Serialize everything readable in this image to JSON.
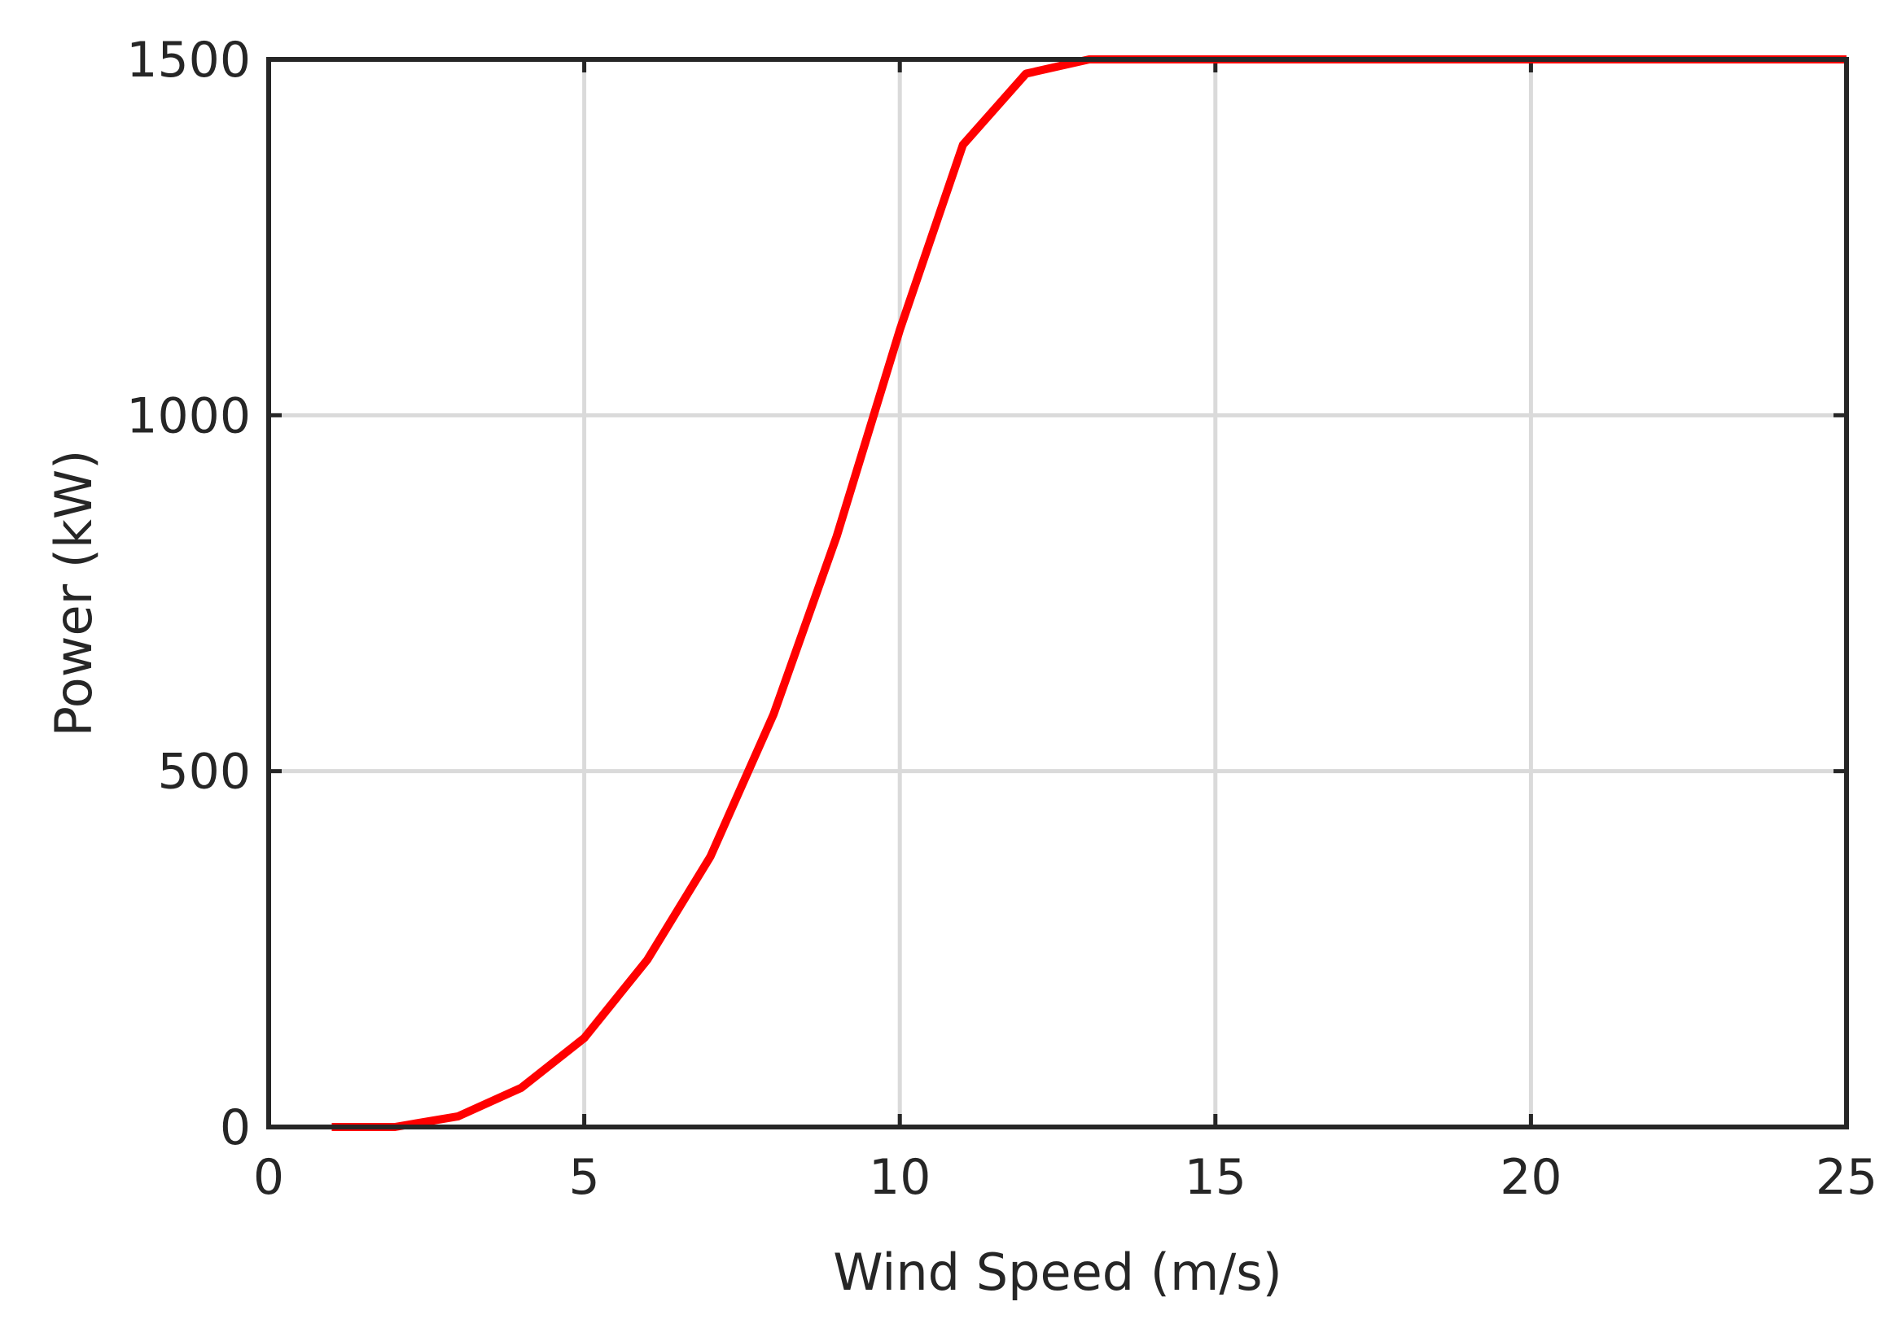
{
  "chart_data": {
    "type": "line",
    "title": "",
    "xlabel": "Wind Speed (m/s)",
    "ylabel": "Power (kW)",
    "xlim": [
      0,
      25
    ],
    "ylim": [
      0,
      1500
    ],
    "xticks": [
      "0",
      "5",
      "10",
      "15",
      "20",
      "25"
    ],
    "yticks": [
      "0",
      "500",
      "1000",
      "1500"
    ],
    "grid": true,
    "series_color": "#ff0000",
    "series": [
      {
        "x": [
          1,
          2,
          3,
          4,
          5,
          6,
          7,
          8,
          9,
          10,
          11,
          12,
          13,
          14,
          15,
          16,
          17,
          18,
          19,
          20,
          21,
          22,
          23,
          24,
          25
        ],
        "values": [
          0,
          0,
          15,
          55,
          125,
          235,
          380,
          580,
          830,
          1120,
          1380,
          1480,
          1500,
          1500,
          1500,
          1500,
          1500,
          1500,
          1500,
          1500,
          1500,
          1500,
          1500,
          1500,
          1500
        ]
      }
    ]
  }
}
